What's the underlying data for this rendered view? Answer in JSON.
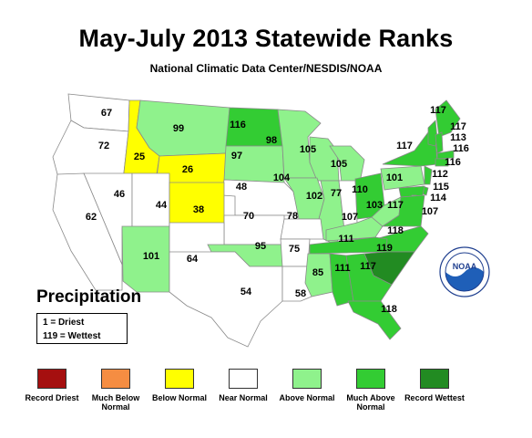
{
  "title": "May-July 2013 Statewide Ranks",
  "subtitle": "National Climatic Data Center/NESDIS/NOAA",
  "variable": "Precipitation",
  "key": {
    "driest": "1 = Driest",
    "wettest": "119 = Wettest"
  },
  "colors": {
    "record_driest": "#a50f0f",
    "much_below": "#f58d42",
    "below": "#ffff00",
    "near": "#ffffff",
    "above": "#8ff28c",
    "much_above": "#33cc33",
    "record_wettest": "#228b22",
    "border": "#8a8a8a"
  },
  "legend": [
    {
      "label": "Record Driest",
      "color": "#a50f0f"
    },
    {
      "label": "Much Below Normal",
      "color": "#f58d42"
    },
    {
      "label": "Below Normal",
      "color": "#ffff00"
    },
    {
      "label": "Near Normal",
      "color": "#ffffff"
    },
    {
      "label": "Above Normal",
      "color": "#8ff28c"
    },
    {
      "label": "Much Above Normal",
      "color": "#33cc33"
    },
    {
      "label": "Record Wettest",
      "color": "#228b22"
    }
  ],
  "state_ranks": [
    {
      "state": "WA",
      "rank": "67",
      "category": "near"
    },
    {
      "state": "OR",
      "rank": "72",
      "category": "near"
    },
    {
      "state": "ID",
      "rank": "25",
      "category": "below"
    },
    {
      "state": "MT",
      "rank": "99",
      "category": "above"
    },
    {
      "state": "WY",
      "rank": "26",
      "category": "below"
    },
    {
      "state": "ND",
      "rank": "116",
      "category": "much_above"
    },
    {
      "state": "SD",
      "rank": "97",
      "category": "above"
    },
    {
      "state": "MN",
      "rank": "98",
      "category": "above"
    },
    {
      "state": "WI",
      "rank": "105",
      "category": "above"
    },
    {
      "state": "MI",
      "rank": "105",
      "category": "above"
    },
    {
      "state": "NE",
      "rank": "48",
      "category": "near"
    },
    {
      "state": "IA",
      "rank": "104",
      "category": "above"
    },
    {
      "state": "IL",
      "rank": "102",
      "category": "above"
    },
    {
      "state": "IN",
      "rank": "77",
      "category": "near"
    },
    {
      "state": "OH",
      "rank": "110",
      "category": "much_above"
    },
    {
      "state": "PA",
      "rank": "101",
      "category": "above"
    },
    {
      "state": "NY",
      "rank": "117",
      "category": "much_above"
    },
    {
      "state": "ME",
      "rank": "117",
      "category": "much_above"
    },
    {
      "state": "VT",
      "rank": "117",
      "category": "much_above"
    },
    {
      "state": "NH",
      "rank": "113",
      "category": "much_above"
    },
    {
      "state": "MA",
      "rank": "116",
      "category": "much_above"
    },
    {
      "state": "CT",
      "rank": "116",
      "category": "much_above"
    },
    {
      "state": "NJ",
      "rank": "112",
      "category": "much_above"
    },
    {
      "state": "DE",
      "rank": "115",
      "category": "much_above"
    },
    {
      "state": "MD",
      "rank": "114",
      "category": "much_above"
    },
    {
      "state": "DC",
      "rank": "107",
      "category": "above"
    },
    {
      "state": "NV",
      "rank": "46",
      "category": "near"
    },
    {
      "state": "CA",
      "rank": "62",
      "category": "near"
    },
    {
      "state": "UT",
      "rank": "44",
      "category": "near"
    },
    {
      "state": "CO",
      "rank": "38",
      "category": "below"
    },
    {
      "state": "KS",
      "rank": "70",
      "category": "near"
    },
    {
      "state": "MO",
      "rank": "78",
      "category": "near"
    },
    {
      "state": "KY",
      "rank": "107",
      "category": "above"
    },
    {
      "state": "WV",
      "rank": "103",
      "category": "above"
    },
    {
      "state": "VA",
      "rank": "117",
      "category": "much_above"
    },
    {
      "state": "NC",
      "rank": "118",
      "category": "much_above"
    },
    {
      "state": "TN",
      "rank": "111",
      "category": "much_above"
    },
    {
      "state": "SC",
      "rank": "119",
      "category": "record_wettest"
    },
    {
      "state": "AZ",
      "rank": "101",
      "category": "above"
    },
    {
      "state": "NM",
      "rank": "64",
      "category": "near"
    },
    {
      "state": "OK",
      "rank": "95",
      "category": "above"
    },
    {
      "state": "AR",
      "rank": "75",
      "category": "near"
    },
    {
      "state": "TX",
      "rank": "54",
      "category": "near"
    },
    {
      "state": "LA",
      "rank": "58",
      "category": "near"
    },
    {
      "state": "MS",
      "rank": "85",
      "category": "above"
    },
    {
      "state": "AL",
      "rank": "111",
      "category": "much_above"
    },
    {
      "state": "GA",
      "rank": "117",
      "category": "much_above"
    },
    {
      "state": "FL",
      "rank": "118",
      "category": "much_above"
    }
  ],
  "logo": {
    "name": "noaa-logo",
    "text": "NOAA"
  }
}
